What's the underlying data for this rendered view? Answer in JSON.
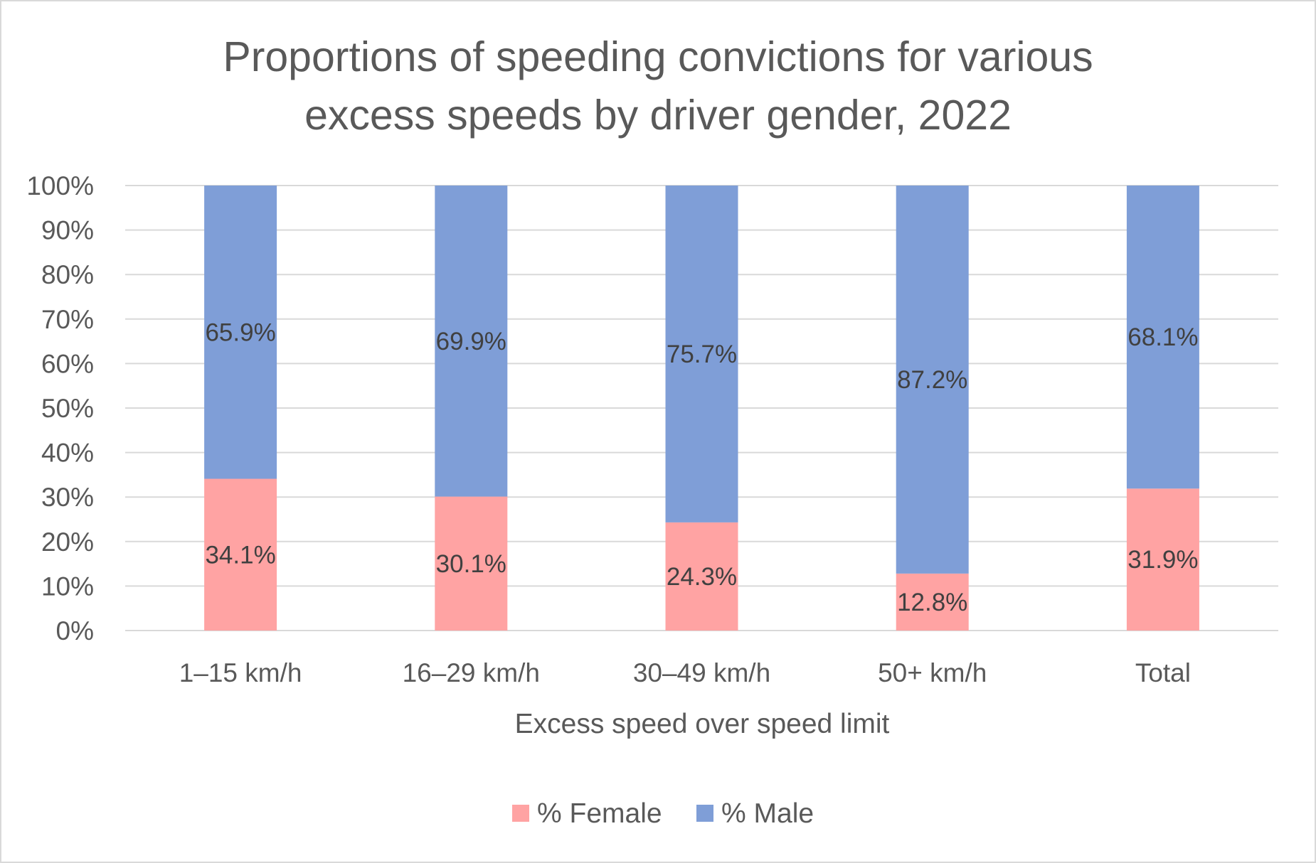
{
  "chart_data": {
    "type": "bar",
    "stacked": true,
    "title_lines": [
      "Proportions of speeding convictions for various",
      "excess speeds by driver gender, 2022"
    ],
    "categories": [
      "1–15 km/h",
      "16–29 km/h",
      "30–49 km/h",
      "50+ km/h",
      "Total"
    ],
    "series": [
      {
        "name": "% Female",
        "color": "#ffa3a3",
        "values": [
          34.1,
          30.1,
          24.3,
          12.8,
          31.9
        ],
        "labels": [
          "34.1%",
          "30.1%",
          "24.3%",
          "12.8%",
          "31.9%"
        ]
      },
      {
        "name": "% Male",
        "color": "#7f9ed7",
        "values": [
          65.9,
          69.9,
          75.7,
          87.2,
          68.1
        ],
        "labels": [
          "65.9%",
          "69.9%",
          "75.7%",
          "87.2%",
          "68.1%"
        ]
      }
    ],
    "xlabel": "Excess speed over speed limit",
    "ylabel": "",
    "ylim": [
      0,
      100
    ],
    "yticks": [
      0,
      10,
      20,
      30,
      40,
      50,
      60,
      70,
      80,
      90,
      100
    ],
    "ytick_labels": [
      "0%",
      "10%",
      "20%",
      "30%",
      "40%",
      "50%",
      "60%",
      "70%",
      "80%",
      "90%",
      "100%"
    ],
    "grid": true,
    "gridline_color": "#d9d9d9",
    "legend_position": "bottom"
  }
}
